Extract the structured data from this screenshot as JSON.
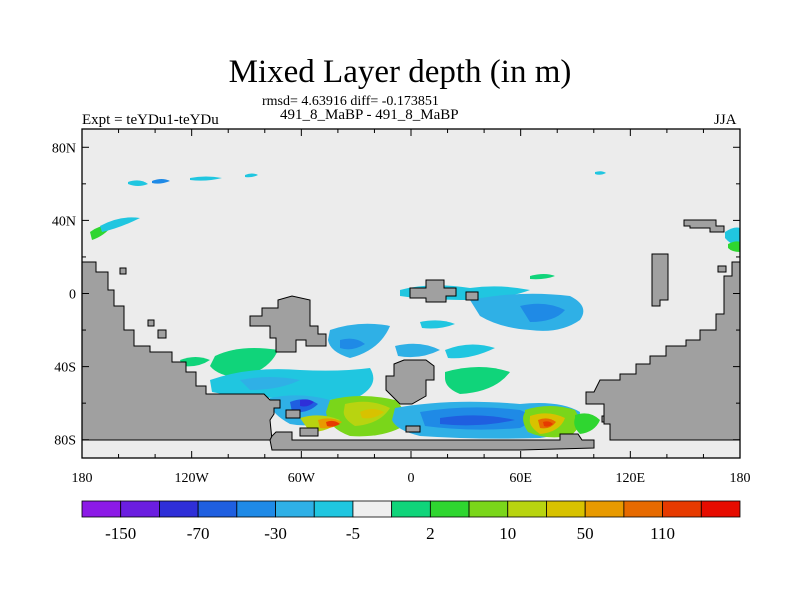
{
  "title": "Mixed Layer depth (in m)",
  "stats": "rmsd= 4.63916 diff= -0.173851",
  "subtitle": "491_8_MaBP - 491_8_MaBP",
  "experiment": "Expt = teYDu1-teYDu",
  "season": "JJA",
  "axes": {
    "x_ticks": [
      "180",
      "120W",
      "60W",
      "0",
      "60E",
      "120E",
      "180"
    ],
    "y_ticks": [
      "80N",
      "40N",
      "0",
      "40S",
      "80S"
    ]
  },
  "colorbar": {
    "labels": [
      "-150",
      "-70",
      "-30",
      "-5",
      "2",
      "10",
      "50",
      "110"
    ],
    "colors": [
      "#8c1ae6",
      "#6b1ee0",
      "#2f2fd8",
      "#1f5fe0",
      "#1f8ae6",
      "#2fb0e6",
      "#20c6e0",
      "#efefef",
      "#10d47a",
      "#2fd630",
      "#7ad61a",
      "#b8d410",
      "#d8c200",
      "#e89a00",
      "#e66a00",
      "#e63a00",
      "#e60c00"
    ]
  },
  "colors": {
    "ocean": "#ececec",
    "land": "#a0a0a0",
    "frame": "#000000"
  }
}
